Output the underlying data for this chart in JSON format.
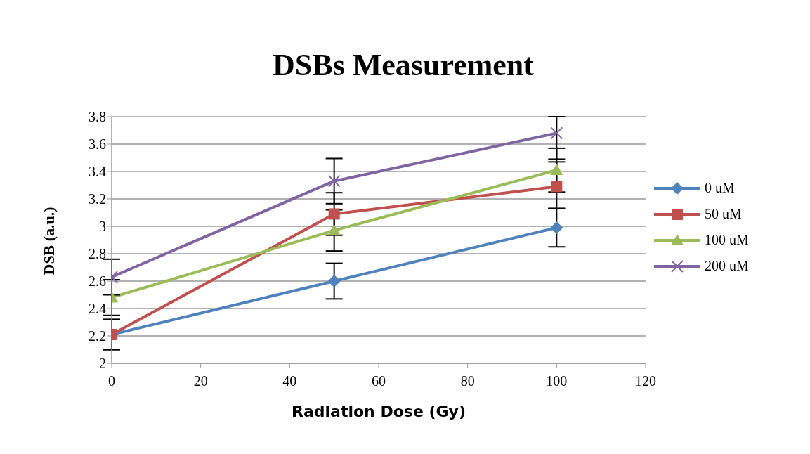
{
  "chart_data": {
    "type": "line",
    "title": "DSBs Measurement",
    "xlabel": "Radiation Dose (Gy)",
    "ylabel": "DSB (a.u.)",
    "x": [
      0,
      50,
      100
    ],
    "series": [
      {
        "name": "0 uM",
        "color": "#4f81bd",
        "marker": "diamond",
        "values": [
          2.21,
          2.6,
          2.99
        ],
        "errors": [
          0.11,
          0.13,
          0.14
        ]
      },
      {
        "name": "50 uM",
        "color": "#c0504d",
        "marker": "square",
        "values": [
          2.21,
          3.09,
          3.29
        ],
        "errors": [
          0.11,
          0.155,
          [
            3.13,
            3.47
          ]
        ]
      },
      {
        "name": "100 uM",
        "color": "#9bbb59",
        "marker": "triangle",
        "values": [
          2.48,
          2.97,
          3.41
        ],
        "errors": [
          0.13,
          0.15,
          0.16
        ]
      },
      {
        "name": "200 uM",
        "color": "#8064a2",
        "marker": "cross",
        "values": [
          2.63,
          3.33,
          3.68
        ],
        "errors": [
          0.13,
          0.165,
          [
            3.49,
            3.8
          ]
        ]
      }
    ],
    "xlim": [
      0,
      120
    ],
    "xticks": [
      0,
      20,
      40,
      60,
      80,
      100,
      120
    ],
    "ylim": [
      2,
      3.8
    ],
    "yticks": [
      2,
      2.2,
      2.4,
      2.6,
      2.8,
      3,
      3.2,
      3.4,
      3.6,
      3.8
    ],
    "grid": "y",
    "legend": "right",
    "line_style": "solid"
  }
}
